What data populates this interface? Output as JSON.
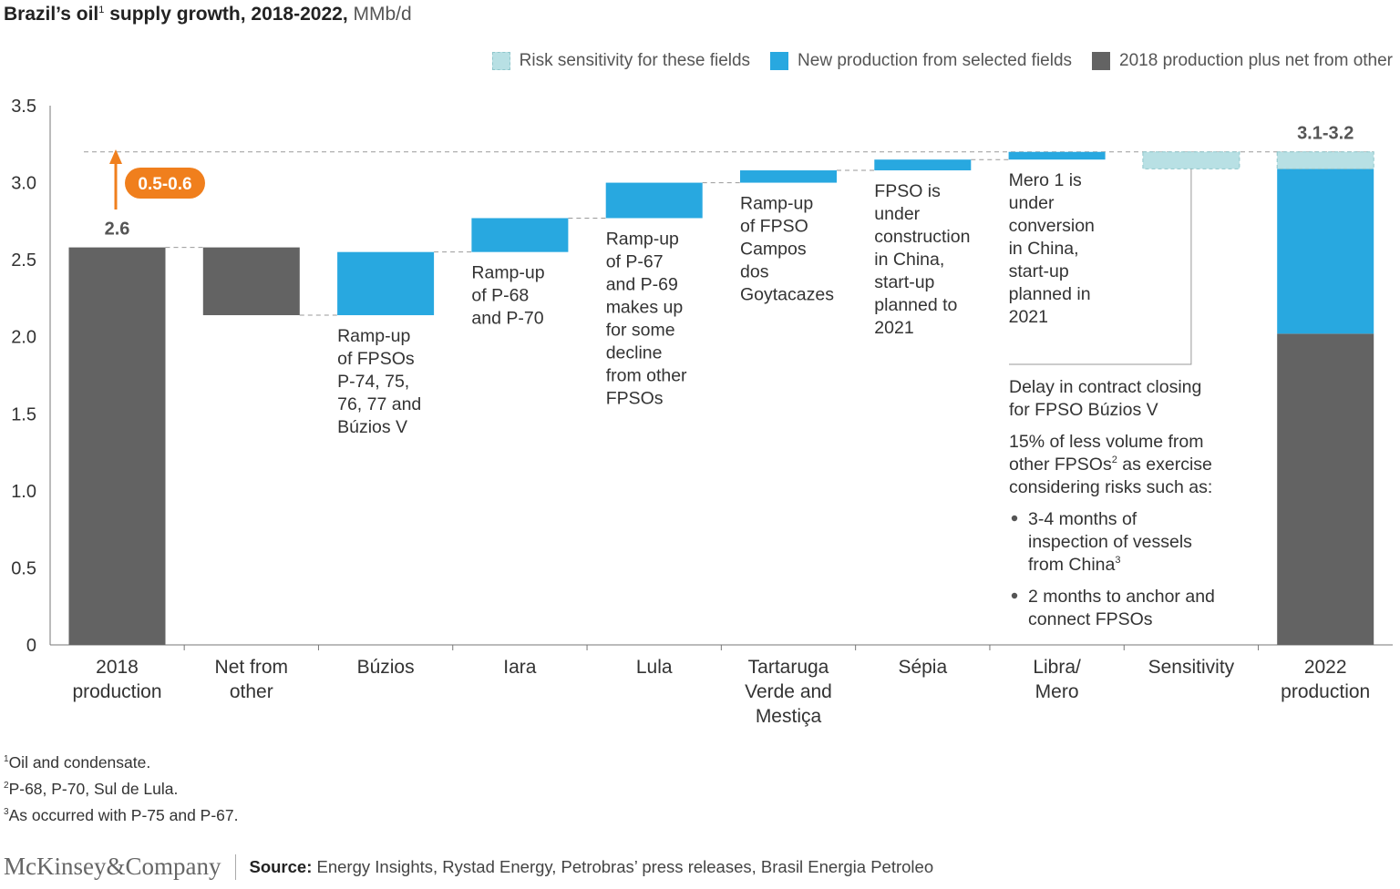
{
  "title": {
    "main": "Brazil’s oil",
    "sup": "1",
    "main2": " supply growth, 2018-2022,",
    "unit": " MMb/d"
  },
  "legend": [
    {
      "label": "Risk sensitivity for these fields",
      "color": "#b8e0e4",
      "dashed": true
    },
    {
      "label": "New production from selected fields",
      "color": "#28a8e0",
      "dashed": false
    },
    {
      "label": "2018 production plus net from other",
      "color": "#636363",
      "dashed": false
    }
  ],
  "colors": {
    "dark": "#636363",
    "blue": "#28a8e0",
    "light": "#b8e0e4",
    "orange": "#f07f1d"
  },
  "chart_data": {
    "type": "bar",
    "subtype": "waterfall",
    "ylim": [
      0,
      3.5
    ],
    "yticks": [
      "0",
      "0.5",
      "1.0",
      "1.5",
      "2.0",
      "2.5",
      "3.0",
      "3.5"
    ],
    "categories": [
      [
        "2018",
        "production"
      ],
      [
        "Net from",
        "other"
      ],
      [
        "Búzios"
      ],
      [
        "Iara"
      ],
      [
        "Lula"
      ],
      [
        "Tartaruga",
        "Verde and",
        "Mestiça"
      ],
      [
        "Sépia"
      ],
      [
        "Libra/",
        "Mero"
      ],
      [
        "Sensitivity"
      ],
      [
        "2022",
        "production"
      ]
    ],
    "bars": [
      {
        "segments": [
          {
            "from": 0,
            "to": 2.58,
            "kind": "dark"
          }
        ]
      },
      {
        "segments": [
          {
            "from": 2.14,
            "to": 2.58,
            "kind": "dark"
          }
        ]
      },
      {
        "segments": [
          {
            "from": 2.14,
            "to": 2.55,
            "kind": "blue"
          }
        ]
      },
      {
        "segments": [
          {
            "from": 2.55,
            "to": 2.77,
            "kind": "blue"
          }
        ]
      },
      {
        "segments": [
          {
            "from": 2.77,
            "to": 3.0,
            "kind": "blue"
          }
        ]
      },
      {
        "segments": [
          {
            "from": 3.0,
            "to": 3.08,
            "kind": "blue"
          }
        ]
      },
      {
        "segments": [
          {
            "from": 3.08,
            "to": 3.15,
            "kind": "blue"
          }
        ]
      },
      {
        "segments": [
          {
            "from": 3.15,
            "to": 3.2,
            "kind": "blue"
          }
        ]
      },
      {
        "segments": [
          {
            "from": 3.09,
            "to": 3.2,
            "kind": "light"
          }
        ]
      },
      {
        "segments": [
          {
            "from": 0,
            "to": 2.02,
            "kind": "dark"
          },
          {
            "from": 2.02,
            "to": 3.09,
            "kind": "blue"
          },
          {
            "from": 3.09,
            "to": 3.2,
            "kind": "light"
          }
        ]
      }
    ],
    "value_labels": [
      {
        "bar": 0,
        "text": "2.6"
      },
      {
        "bar": 9,
        "text": "3.1-3.2"
      }
    ],
    "growth_badge": "0.5-0.6",
    "annotations": [
      {
        "bar": 2,
        "lines": [
          "Ramp-up",
          "of FPSOs",
          "P-74, 75,",
          "76, 77 and",
          "Búzios V"
        ]
      },
      {
        "bar": 3,
        "lines": [
          "Ramp-up",
          "of P-68",
          "and P-70"
        ]
      },
      {
        "bar": 4,
        "lines": [
          "Ramp-up",
          "of P-67",
          "and P-69",
          "makes up",
          "for some",
          "decline",
          "from other",
          "FPSOs"
        ]
      },
      {
        "bar": 5,
        "lines": [
          "Ramp-up",
          "of FPSO",
          "Campos",
          "dos",
          "Goytacazes"
        ]
      },
      {
        "bar": 6,
        "lines": [
          "FPSO is",
          "under",
          "construction",
          "in China,",
          "start-up",
          "planned to",
          "2021"
        ]
      },
      {
        "bar": 7,
        "lines": [
          "Mero 1 is",
          "under",
          "conversion",
          "in China,",
          "start-up",
          "planned in",
          "2021"
        ]
      }
    ],
    "sensitivity_note": {
      "p1": [
        "Delay in contract closing",
        "for FPSO Búzios V"
      ],
      "p2": [
        "15% of less volume from",
        "other FPSOs",
        "2",
        " as exercise",
        "considering risks such as:"
      ],
      "b1": [
        "3-4 months of",
        "inspection of vessels",
        "from China",
        "3"
      ],
      "b2": [
        "2 months to anchor and",
        "connect FPSOs"
      ]
    },
    "grid": false,
    "legend_position": "top-right"
  },
  "footnotes": [
    {
      "sup": "1",
      "text": "Oil and condensate."
    },
    {
      "sup": "2",
      "text": "P-68, P-70, Sul de Lula."
    },
    {
      "sup": "3",
      "text": "As occurred with P-75 and P-67."
    }
  ],
  "footer": {
    "brand": "McKinsey&Company",
    "source_label": "Source:",
    "source_text": " Energy Insights, Rystad Energy, Petrobras’ press releases, Brasil Energia Petroleo"
  }
}
